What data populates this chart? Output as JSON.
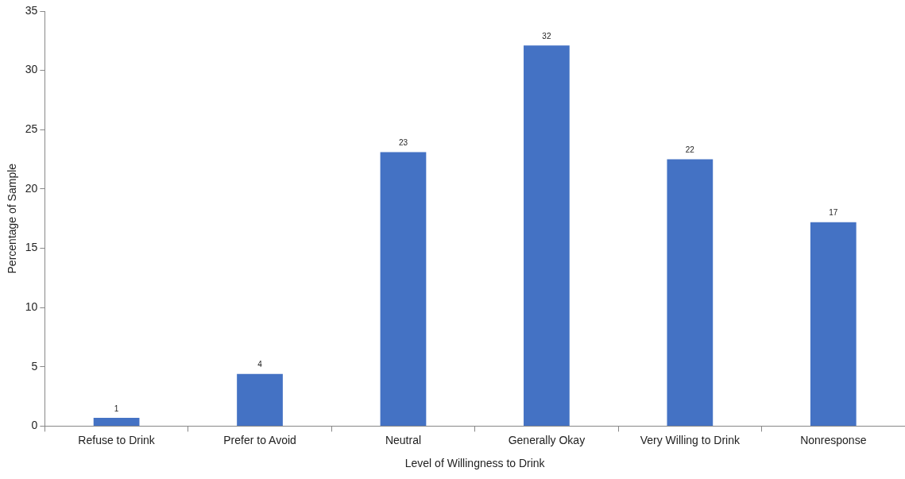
{
  "chart_data": {
    "type": "bar",
    "xlabel": "Level of Willingness to Drink",
    "ylabel": "Percentage of Sample",
    "categories": [
      "Refuse to Drink",
      "Prefer to Avoid",
      "Neutral",
      "Generally Okay",
      "Very Willing to Drink",
      "Nonresponse"
    ],
    "values": [
      0.7,
      4.4,
      23.1,
      32.1,
      22.5,
      17.2
    ],
    "value_labels": [
      "1",
      "4",
      "23",
      "32",
      "22",
      "17"
    ],
    "color": "#4472c4",
    "ylim": [
      0,
      35
    ],
    "yticks": [
      0,
      5,
      10,
      15,
      20,
      25,
      30,
      35
    ],
    "grid": false,
    "legend": false
  }
}
